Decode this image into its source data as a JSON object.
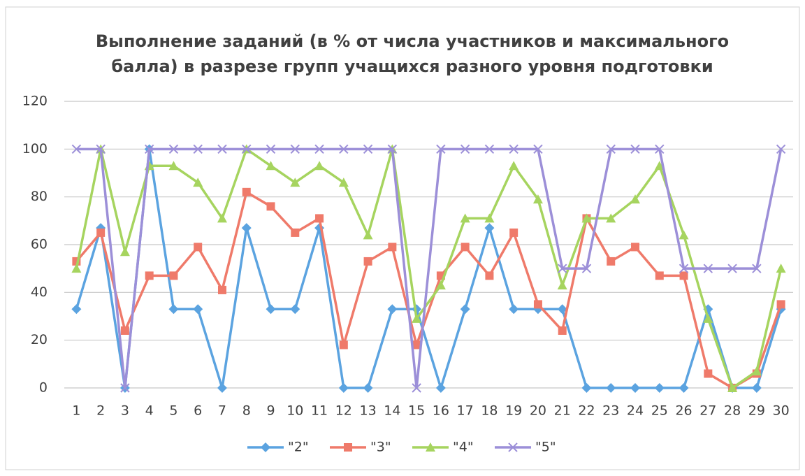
{
  "chart_data": {
    "type": "line",
    "title": [
      "Выполнение заданий (в % от числа участников и максимального",
      "балла) в разрезе групп учащихся разного уровня подготовки"
    ],
    "categories": [
      "1",
      "2",
      "3",
      "4",
      "5",
      "6",
      "7",
      "8",
      "9",
      "10",
      "11",
      "12",
      "13",
      "14",
      "15",
      "16",
      "17",
      "18",
      "19",
      "20",
      "21",
      "22",
      "23",
      "24",
      "25",
      "26",
      "27",
      "28",
      "29",
      "30"
    ],
    "series": [
      {
        "name": "\"2\"",
        "color": "#5ba3e0",
        "marker": "diamond",
        "values": [
          33,
          67,
          0,
          100,
          33,
          33,
          0,
          67,
          33,
          33,
          67,
          0,
          0,
          33,
          33,
          0,
          33,
          67,
          33,
          33,
          33,
          0,
          0,
          0,
          0,
          0,
          33,
          0,
          0,
          33
        ]
      },
      {
        "name": "\"3\"",
        "color": "#ef7a6a",
        "marker": "square",
        "values": [
          53,
          65,
          24,
          47,
          47,
          59,
          41,
          82,
          76,
          65,
          71,
          18,
          53,
          59,
          18,
          47,
          59,
          47,
          65,
          35,
          24,
          71,
          53,
          59,
          47,
          47,
          6,
          0,
          6,
          35
        ]
      },
      {
        "name": "\"4\"",
        "color": "#a6d45f",
        "marker": "triangle",
        "values": [
          50,
          100,
          57,
          93,
          93,
          86,
          71,
          100,
          93,
          86,
          93,
          86,
          64,
          100,
          29,
          43,
          71,
          71,
          93,
          79,
          43,
          71,
          71,
          79,
          93,
          64,
          29,
          0,
          7,
          50
        ]
      },
      {
        "name": "\"5\"",
        "color": "#9c8fd8",
        "marker": "x",
        "values": [
          100,
          100,
          0,
          100,
          100,
          100,
          100,
          100,
          100,
          100,
          100,
          100,
          100,
          100,
          0,
          100,
          100,
          100,
          100,
          100,
          50,
          50,
          100,
          100,
          100,
          50,
          50,
          50,
          50,
          100
        ]
      }
    ],
    "ylim": [
      0,
      120
    ],
    "yticks": [
      0,
      20,
      40,
      60,
      80,
      100,
      120
    ],
    "grid": true,
    "legend": "bottom"
  }
}
